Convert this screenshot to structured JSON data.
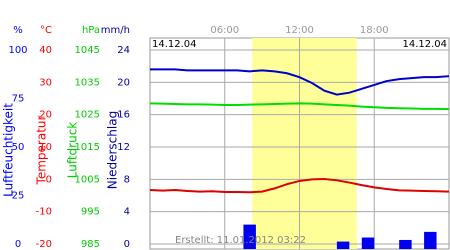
{
  "chart_data": {
    "type": "line",
    "dates": [
      "14.12.04",
      "14.12.04"
    ],
    "footer": "Erstellt: 11.01.2012 03:22",
    "xlim": [
      0,
      24
    ],
    "xticks": [
      {
        "value": 6,
        "label": "06:00"
      },
      {
        "value": 12,
        "label": "12:00"
      },
      {
        "value": 18,
        "label": "18:00"
      }
    ],
    "highlight": [
      8.2,
      16.6
    ],
    "highlight_color": "#ffff99",
    "grid": true,
    "axes": [
      {
        "unit": "%",
        "label": "Luftfeuchtigkeit",
        "color": "#0000ff",
        "ylim": [
          0,
          100
        ],
        "yticks": [
          0,
          25,
          50,
          75,
          100
        ]
      },
      {
        "unit": "°C",
        "label": "Temperatur",
        "color": "#ff0000",
        "ylim": [
          -20,
          40
        ],
        "yticks": [
          -20,
          -10,
          0,
          10,
          20,
          30,
          40
        ]
      },
      {
        "unit": "hPa",
        "label": "Luftdruck",
        "color": "#00cc00",
        "ylim": [
          985,
          1045
        ],
        "yticks": [
          985,
          995,
          1005,
          1015,
          1025,
          1035,
          1045
        ]
      },
      {
        "unit": "mm/h",
        "label": "Niederschlag",
        "color": "#0000aa",
        "ylim": [
          0,
          24
        ],
        "yticks": [
          0,
          4,
          8,
          12,
          16,
          20,
          24
        ]
      }
    ],
    "series": [
      {
        "type": "line",
        "axis": 0,
        "color": "#0000cc",
        "x": [
          0,
          1,
          2,
          3,
          4,
          5,
          6,
          7,
          8,
          9,
          10,
          11,
          12,
          13,
          14,
          15,
          16,
          17,
          18,
          19,
          20,
          21,
          22,
          23,
          24
        ],
        "values": [
          90,
          90,
          90,
          89.5,
          89.5,
          89.5,
          89.5,
          89.5,
          89,
          89.5,
          89,
          88,
          86,
          83,
          79,
          77,
          78,
          80,
          82,
          84,
          85,
          85.5,
          86,
          86,
          86.5
        ]
      },
      {
        "type": "line",
        "axis": 1,
        "color": "#dd0000",
        "x": [
          0,
          1,
          2,
          3,
          4,
          5,
          6,
          7,
          8,
          9,
          10,
          11,
          12,
          13,
          14,
          15,
          16,
          17,
          18,
          19,
          20,
          21,
          22,
          23,
          24
        ],
        "values": [
          -3.3,
          -3.5,
          -3.3,
          -3.6,
          -3.8,
          -3.7,
          -3.9,
          -3.9,
          -4,
          -3.8,
          -2.8,
          -1.5,
          -0.5,
          0,
          0.1,
          -0.3,
          -1,
          -1.8,
          -2.5,
          -3,
          -3.4,
          -3.5,
          -3.6,
          -3.7,
          -3.8
        ]
      },
      {
        "type": "line",
        "axis": 2,
        "color": "#00dd00",
        "x": [
          0,
          1,
          2,
          3,
          4,
          5,
          6,
          7,
          8,
          9,
          10,
          11,
          12,
          13,
          14,
          15,
          16,
          17,
          18,
          19,
          20,
          21,
          22,
          23,
          24
        ],
        "values": [
          1028.5,
          1028.4,
          1028.3,
          1028.2,
          1028.2,
          1028.1,
          1028,
          1028,
          1028.1,
          1028.2,
          1028.3,
          1028.4,
          1028.5,
          1028.4,
          1028.2,
          1028,
          1027.8,
          1027.5,
          1027.3,
          1027.1,
          1027,
          1026.9,
          1026.8,
          1026.8,
          1026.7
        ]
      },
      {
        "type": "bar",
        "axis": 3,
        "color": "#0000ee",
        "x": [
          8,
          15.5,
          17.5,
          20.5,
          22.5
        ],
        "values": [
          2.4,
          0.3,
          0.8,
          0.5,
          1.5
        ]
      }
    ]
  }
}
